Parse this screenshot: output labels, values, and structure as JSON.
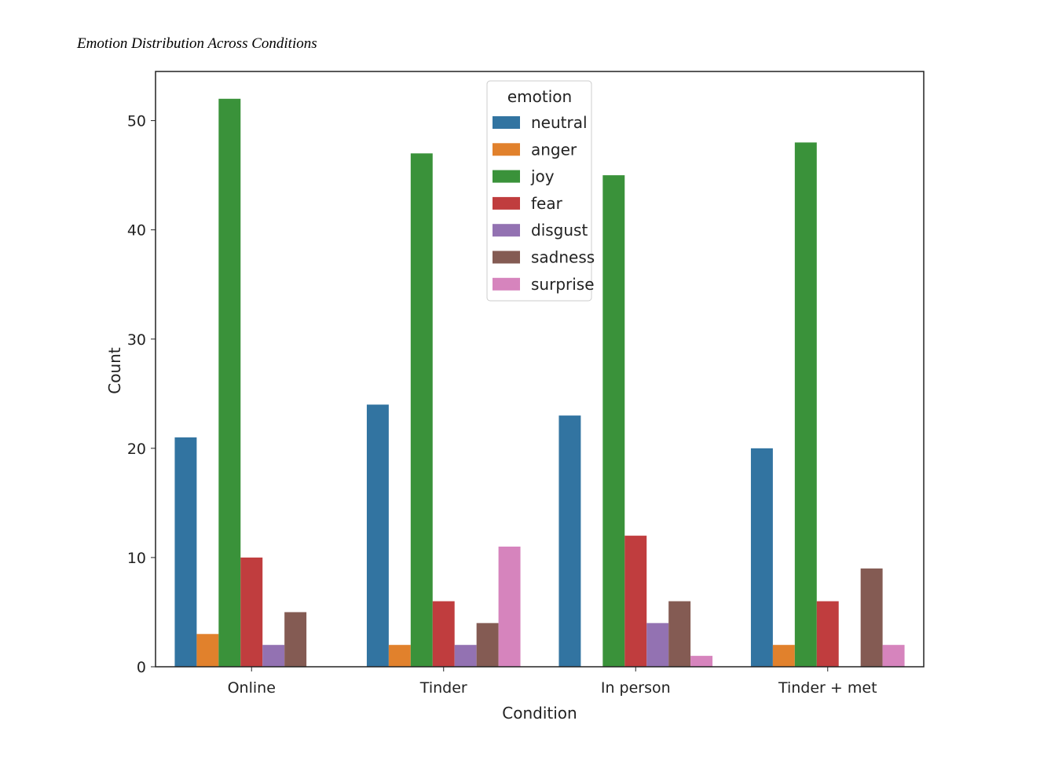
{
  "chart_data": {
    "type": "bar",
    "title": "Emotion Distribution Across Conditions",
    "xlabel": "Condition",
    "ylabel": "Count",
    "ylim": [
      0,
      54.5
    ],
    "yticks": [
      0,
      10,
      20,
      30,
      40,
      50
    ],
    "categories": [
      "Online",
      "Tinder",
      "In person",
      "Tinder + met"
    ],
    "legend_title": "emotion",
    "legend_position": "top-center",
    "series": [
      {
        "name": "neutral",
        "color": "#3274a1",
        "values": [
          21,
          24,
          23,
          20
        ]
      },
      {
        "name": "anger",
        "color": "#e1812c",
        "values": [
          3,
          2,
          0,
          2
        ]
      },
      {
        "name": "joy",
        "color": "#3a923a",
        "values": [
          52,
          47,
          45,
          48
        ]
      },
      {
        "name": "fear",
        "color": "#c03d3e",
        "values": [
          10,
          6,
          12,
          6
        ]
      },
      {
        "name": "disgust",
        "color": "#9372b2",
        "values": [
          2,
          2,
          4,
          0
        ]
      },
      {
        "name": "sadness",
        "color": "#845b53",
        "values": [
          5,
          4,
          6,
          9
        ]
      },
      {
        "name": "surprise",
        "color": "#d684bd",
        "values": [
          0,
          11,
          1,
          2
        ]
      }
    ]
  }
}
